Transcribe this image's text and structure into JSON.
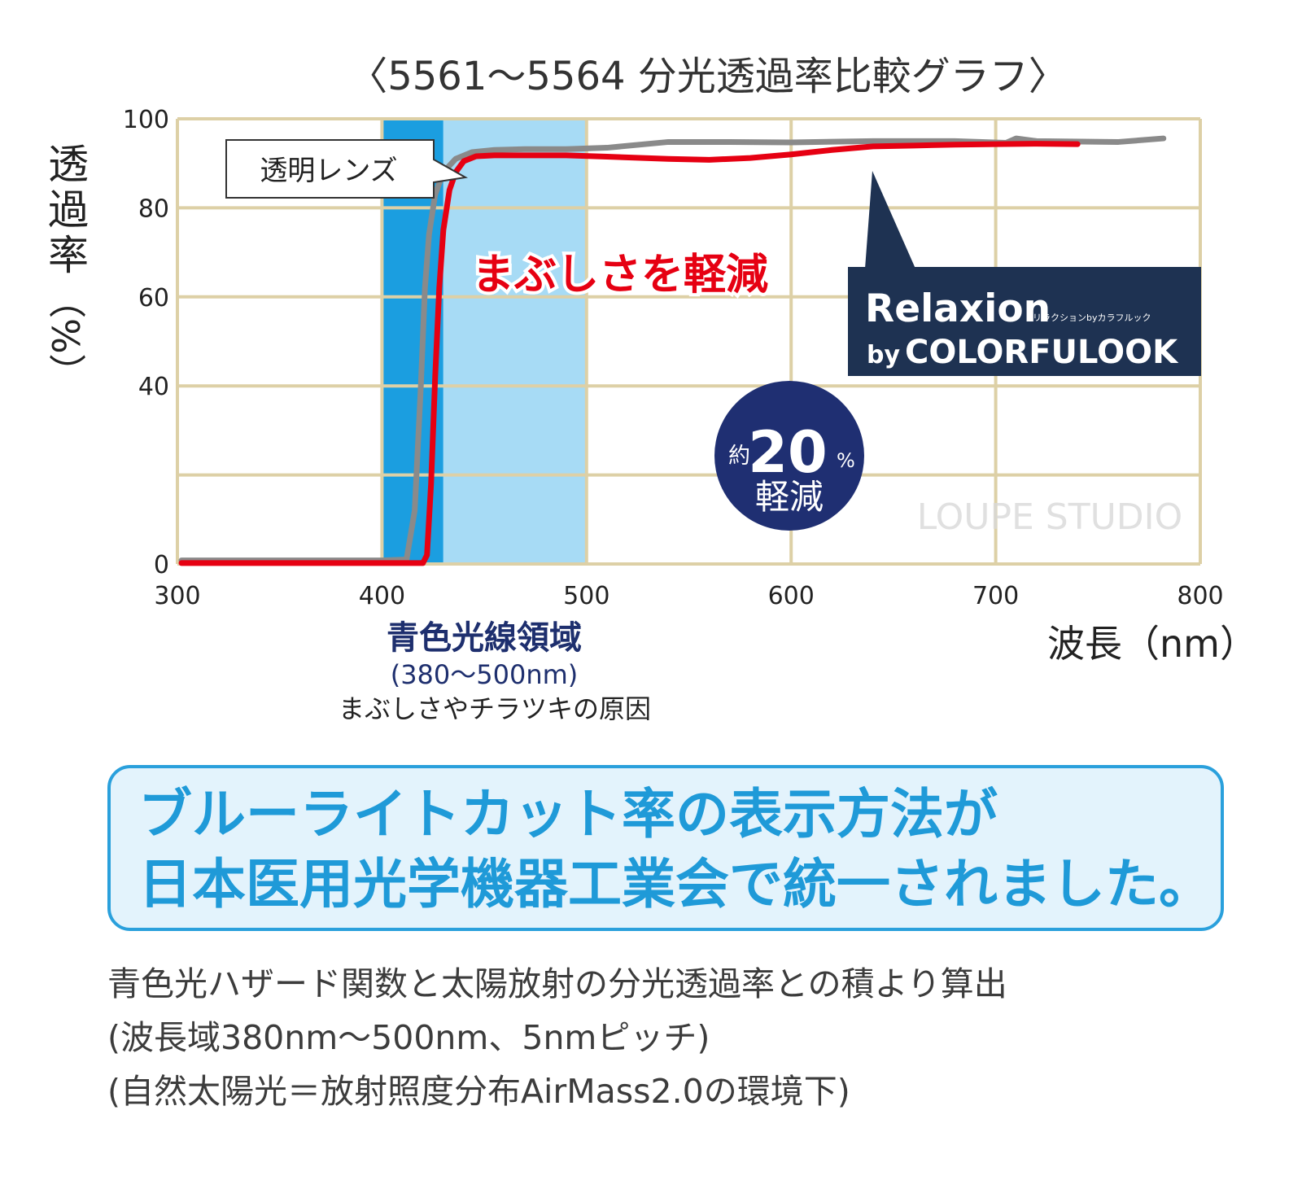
{
  "chart_data": {
    "type": "line",
    "title": "〈5561～5564 分光透過率比較グラフ〉",
    "ylabel_main": "透過率",
    "ylabel_unit": "（%）",
    "xlabel": "波長（nm）",
    "xlim": [
      300,
      800
    ],
    "ylim": [
      0,
      100
    ],
    "x_ticks": [
      300,
      400,
      500,
      600,
      700,
      800
    ],
    "y_ticks": [
      0,
      20,
      40,
      60,
      80,
      100
    ],
    "y_tick_labels": [
      "0",
      "",
      "40",
      "60",
      "80",
      "100"
    ],
    "grid": true,
    "colors": {
      "grid": "#ddd0a6",
      "blue_band_dark": "#1b9ee0",
      "blue_band_light": "#a7dbf5",
      "clear_lens": "#8a8a8a",
      "relaxion": "#e60012",
      "label_navy": "#1e3252",
      "badge": "#1f2f72"
    },
    "bands": [
      {
        "from": 400,
        "to": 500,
        "split": 430,
        "label": "青色光線領域",
        "range_label": "(380～500nm)",
        "note": "まぶしさやチラツキの原因"
      }
    ],
    "series": [
      {
        "name": "透明レンズ",
        "x": [
          302,
          400,
          412,
          416,
          419,
          421,
          423,
          426,
          430,
          436,
          444,
          455,
          470,
          490,
          510,
          540,
          570,
          600,
          640,
          680,
          705,
          710,
          720,
          760,
          782
        ],
        "y": [
          0.8,
          0.8,
          1.0,
          12,
          40,
          62,
          74,
          83,
          88,
          91,
          92.5,
          93,
          93.2,
          93.2,
          93.5,
          94.8,
          94.8,
          94.7,
          95.0,
          95.0,
          94.6,
          95.6,
          95.0,
          94.8,
          95.6
        ]
      },
      {
        "name": "Relaxion by COLORFULOOK",
        "x": [
          302,
          420,
          422,
          424,
          426,
          428,
          430,
          433,
          436,
          440,
          446,
          455,
          470,
          490,
          510,
          540,
          560,
          580,
          600,
          620,
          640,
          660,
          680,
          700,
          720,
          740
        ],
        "y": [
          0.2,
          0.2,
          2,
          18,
          42,
          62,
          75,
          84,
          88,
          90.5,
          91.6,
          91.8,
          91.8,
          91.8,
          91.5,
          91.0,
          90.8,
          91.2,
          92.0,
          93.0,
          93.8,
          94.0,
          94.2,
          94.3,
          94.4,
          94.3
        ]
      }
    ],
    "callouts": {
      "clear_lens_label": "透明レンズ",
      "reduce_glare": "まぶしさを軽減",
      "relaxion_brand": "Relaxion",
      "relaxion_kana": "リラクションbyカラフルック",
      "relaxion_by": "by",
      "relaxion_maker": "COLORFULOOK",
      "badge_prefix": "約",
      "badge_value": "20",
      "badge_unit": "%",
      "badge_suffix": "軽減"
    },
    "watermark": "LOUPE STUDIO"
  },
  "notice": {
    "line1": "ブルーライトカット率の表示方法が",
    "line2": "日本医用光学機器工業会で統一されました。"
  },
  "notes": {
    "line1": "青色光ハザード関数と太陽放射の分光透過率との積より算出",
    "line2": "(波長域380nm～500nm、5nmピッチ)",
    "line3": "(自然太陽光＝放射照度分布AirMass2.0の環境下)"
  }
}
